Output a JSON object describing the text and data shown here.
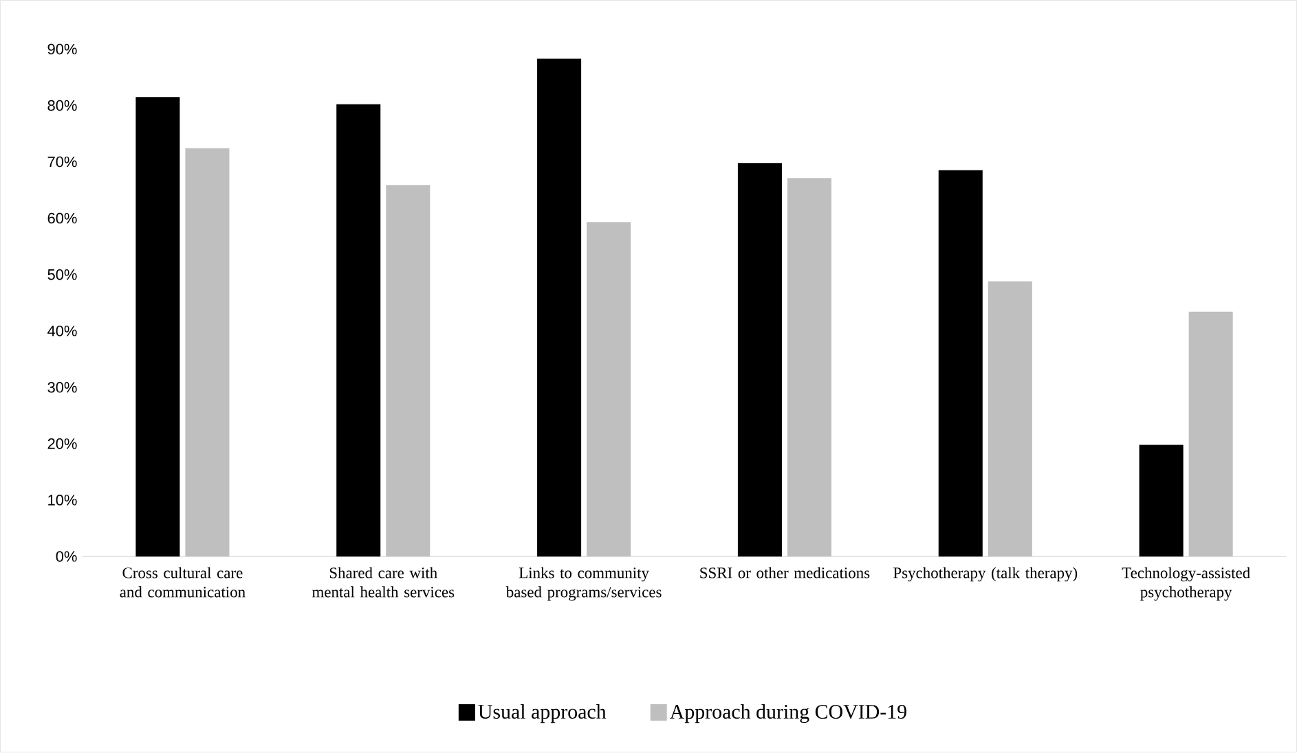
{
  "chart_data": {
    "type": "bar",
    "categories": [
      "Cross cultural care and communication",
      "Shared care with mental health services",
      "Links to community based programs/services",
      "SSRI or other medications",
      "Psychotherapy (talk therapy)",
      "Technology-assisted psychotherapy"
    ],
    "series": [
      {
        "name": "Usual approach",
        "color": "#000000",
        "values": [
          81.5,
          80.2,
          88.3,
          69.8,
          68.5,
          19.8
        ]
      },
      {
        "name": "Approach during COVID-19",
        "color": "#bfbfbf",
        "values": [
          72.4,
          65.9,
          59.3,
          67.1,
          48.8,
          43.4
        ]
      }
    ],
    "ylim": [
      0,
      90
    ],
    "yticks": [
      {
        "value": 0,
        "label": "0%"
      },
      {
        "value": 10,
        "label": "10%"
      },
      {
        "value": 20,
        "label": "20%"
      },
      {
        "value": 30,
        "label": "30%"
      },
      {
        "value": 40,
        "label": "40%"
      },
      {
        "value": 50,
        "label": "50%"
      },
      {
        "value": 60,
        "label": "60%"
      },
      {
        "value": 70,
        "label": "70%"
      },
      {
        "value": 80,
        "label": "80%"
      },
      {
        "value": 90,
        "label": "90%"
      }
    ],
    "legend": "bottom"
  }
}
